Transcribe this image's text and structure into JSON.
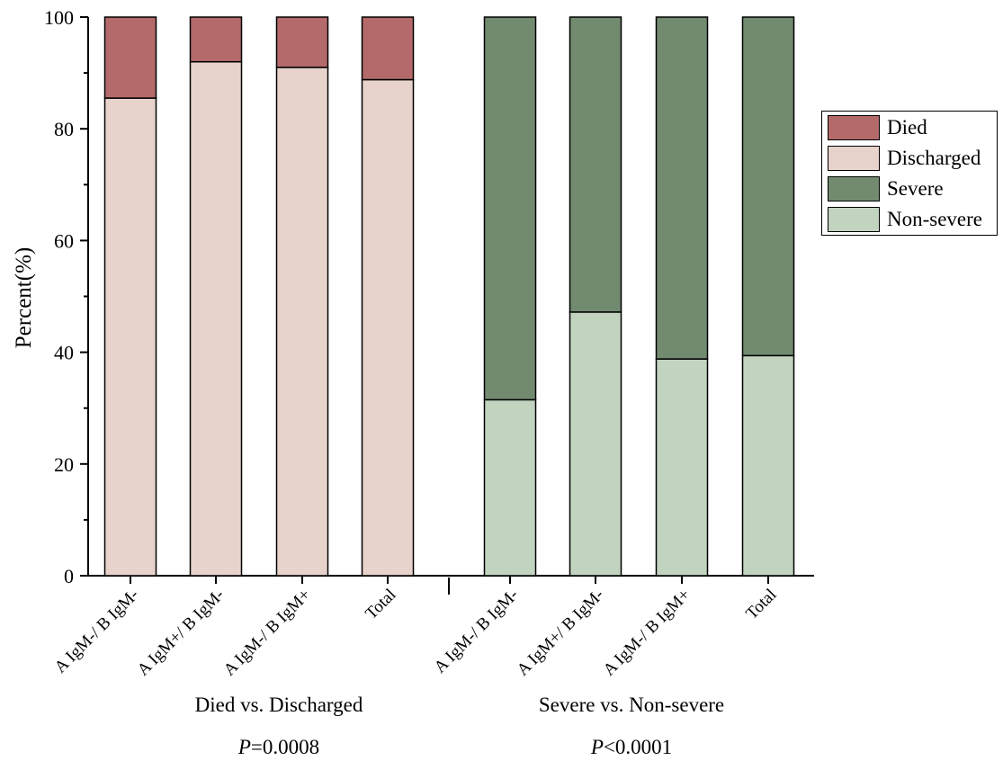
{
  "chart_data": {
    "type": "bar",
    "stacked": true,
    "ylabel": "Percent(%)",
    "ylim": [
      0,
      100
    ],
    "yticks": [
      0,
      20,
      40,
      60,
      80,
      100
    ],
    "grid": false,
    "legend_position": "right",
    "groups": [
      {
        "caption": "Died vs. Discharged",
        "p_prefix": "P",
        "p_suffix": "=0.0008",
        "categories": [
          "A IgM-/ B IgM-",
          "A IgM+/ B IgM-",
          "A IgM-/ B IgM+",
          "Total"
        ],
        "series": [
          {
            "name": "Discharged",
            "color": "#e8d2cc",
            "values": [
              85.5,
              92.0,
              91.0,
              88.8
            ]
          },
          {
            "name": "Died",
            "color": "#b46a6a",
            "values": [
              14.5,
              8.0,
              9.0,
              11.2
            ]
          }
        ]
      },
      {
        "caption": "Severe vs. Non-severe",
        "p_prefix": "P",
        "p_suffix": "<0.0001",
        "categories": [
          "A IgM-/ B IgM-",
          "A IgM+/ B IgM-",
          "A IgM-/ B IgM+",
          "Total"
        ],
        "series": [
          {
            "name": "Non-severe",
            "color": "#c2d4c0",
            "values": [
              31.5,
              47.2,
              38.8,
              39.4
            ]
          },
          {
            "name": "Severe",
            "color": "#728b70",
            "values": [
              68.5,
              52.8,
              61.2,
              60.6
            ]
          }
        ]
      }
    ],
    "legend": [
      {
        "name": "Died",
        "color": "#b46a6a"
      },
      {
        "name": "Discharged",
        "color": "#e8d2cc"
      },
      {
        "name": "Severe",
        "color": "#728b70"
      },
      {
        "name": "Non-severe",
        "color": "#c2d4c0"
      }
    ]
  }
}
